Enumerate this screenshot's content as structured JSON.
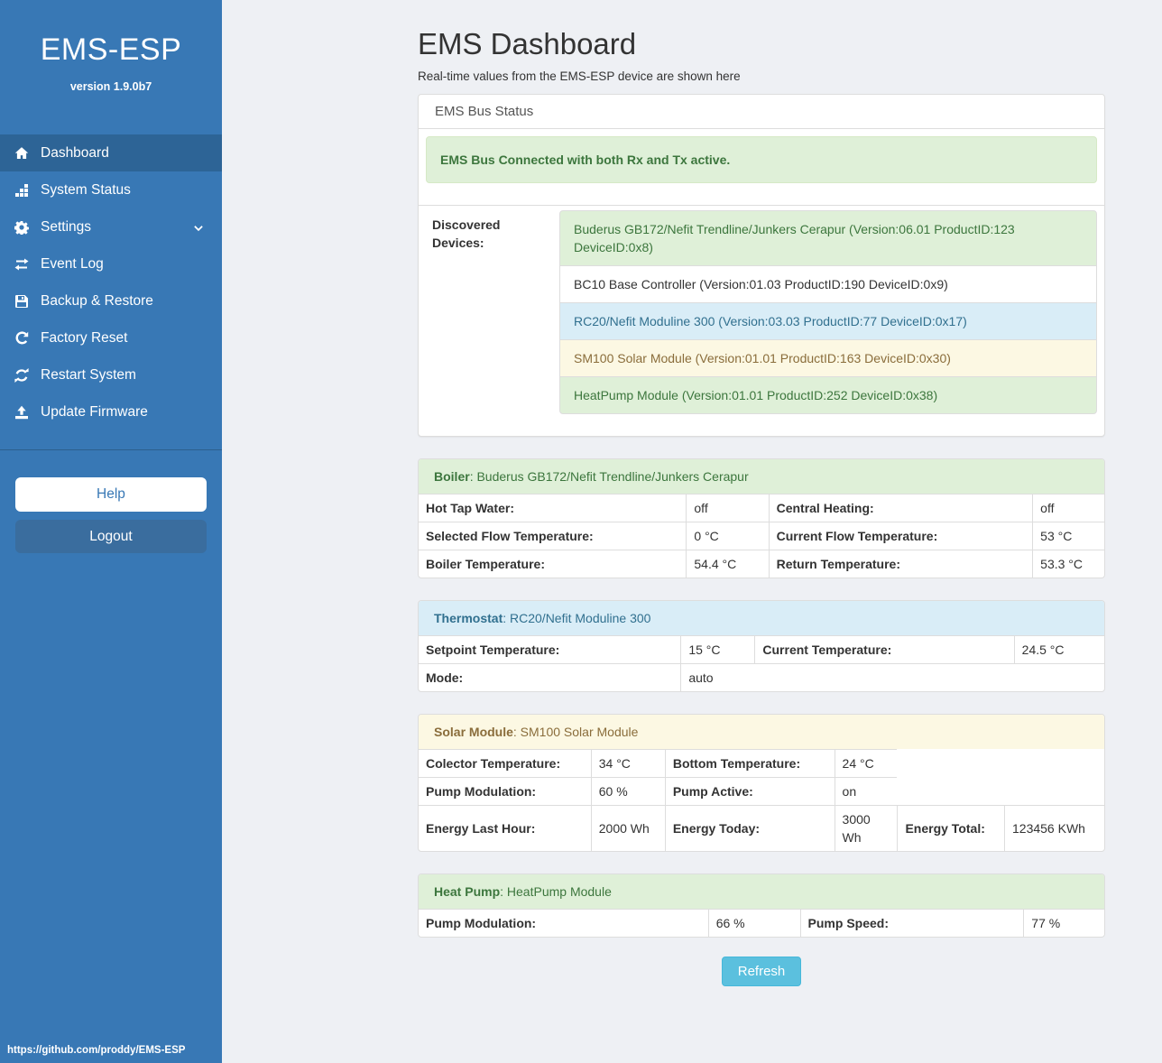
{
  "sidebar": {
    "title": "EMS-ESP",
    "version": "version 1.9.0b7",
    "items": [
      {
        "label": "Dashboard",
        "icon": "home-icon",
        "active": true
      },
      {
        "label": "System Status",
        "icon": "stats-icon",
        "active": false
      },
      {
        "label": "Settings",
        "icon": "gear-icon",
        "active": false,
        "chevron": true
      },
      {
        "label": "Event Log",
        "icon": "exchange-icon",
        "active": false
      },
      {
        "label": "Backup & Restore",
        "icon": "save-icon",
        "active": false
      },
      {
        "label": "Factory Reset",
        "icon": "rotate-icon",
        "active": false
      },
      {
        "label": "Restart System",
        "icon": "refresh-icon",
        "active": false
      },
      {
        "label": "Update Firmware",
        "icon": "upload-icon",
        "active": false
      }
    ],
    "help_label": "Help",
    "logout_label": "Logout",
    "footer_url": "https://github.com/proddy/EMS-ESP"
  },
  "header": {
    "title": "EMS Dashboard",
    "subtitle": "Real-time values from the EMS-ESP device are shown here"
  },
  "bus_panel": {
    "heading": "EMS Bus Status",
    "alert": "EMS Bus Connected with both Rx and Tx active.",
    "devices_label": "Discovered Devices:",
    "devices": [
      {
        "text": "Buderus GB172/Nefit Trendline/Junkers Cerapur (Version:06.01 ProductID:123 DeviceID:0x8)",
        "variant": "success"
      },
      {
        "text": "BC10 Base Controller (Version:01.03 ProductID:190 DeviceID:0x9)",
        "variant": "default"
      },
      {
        "text": "RC20/Nefit Moduline 300 (Version:03.03 ProductID:77 DeviceID:0x17)",
        "variant": "info"
      },
      {
        "text": "SM100 Solar Module (Version:01.01 ProductID:163 DeviceID:0x30)",
        "variant": "warning"
      },
      {
        "text": "HeatPump Module (Version:01.01 ProductID:252 DeviceID:0x38)",
        "variant": "success"
      }
    ]
  },
  "sections": [
    {
      "id": "boiler",
      "variant": "success",
      "title": "Boiler",
      "title_rest": ": Buderus GB172/Nefit Trendline/Junkers Cerapur",
      "col_widths": [
        "39%",
        "12%",
        "38.5%",
        "10.5%"
      ],
      "rows": [
        [
          {
            "t": "Hot Tap Water:",
            "b": true
          },
          {
            "t": "off"
          },
          {
            "t": "Central Heating:",
            "b": true
          },
          {
            "t": "off"
          }
        ],
        [
          {
            "t": "Selected Flow Temperature:",
            "b": true
          },
          {
            "t": "0 °C"
          },
          {
            "t": "Current Flow Temperature:",
            "b": true
          },
          {
            "t": "53 °C"
          }
        ],
        [
          {
            "t": "Boiler Temperature:",
            "b": true
          },
          {
            "t": "54.4 °C"
          },
          {
            "t": "Return Temperature:",
            "b": true
          },
          {
            "t": "53.3 °C"
          }
        ]
      ]
    },
    {
      "id": "thermostat",
      "variant": "info",
      "title": "Thermostat",
      "title_rest": ": RC20/Nefit Moduline 300",
      "col_widths": [
        "38.2%",
        "10.8%",
        "37.8%",
        "13.2%"
      ],
      "rows": [
        [
          {
            "t": "Setpoint Temperature:",
            "b": true
          },
          {
            "t": "15 °C"
          },
          {
            "t": "Current Temperature:",
            "b": true
          },
          {
            "t": "24.5 °C"
          }
        ],
        [
          {
            "t": "Mode:",
            "b": true
          },
          {
            "t": "auto",
            "span": 3
          }
        ]
      ]
    },
    {
      "id": "solar-module",
      "variant": "warning",
      "title": "Solar Module",
      "title_rest": ": SM100 Solar Module",
      "col_widths": [
        "25.1%",
        "10.8%",
        "24.7%",
        "9.2%",
        "15.6%",
        "14.6%"
      ],
      "rows": [
        [
          {
            "t": "Colector Temperature:",
            "b": true
          },
          {
            "t": "34 °C"
          },
          {
            "t": "Bottom Temperature:",
            "b": true
          },
          {
            "t": "24 °C"
          }
        ],
        [
          {
            "t": "Pump Modulation:",
            "b": true
          },
          {
            "t": "60 %"
          },
          {
            "t": "Pump Active:",
            "b": true
          },
          {
            "t": "on"
          }
        ],
        [
          {
            "t": "Energy Last Hour:",
            "b": true
          },
          {
            "t": "2000 Wh"
          },
          {
            "t": "Energy Today:",
            "b": true
          },
          {
            "t": "3000 Wh"
          },
          {
            "t": "Energy Total:",
            "b": true
          },
          {
            "t": "123456 KWh"
          }
        ]
      ]
    },
    {
      "id": "heat-pump",
      "variant": "success",
      "title": "Heat Pump",
      "title_rest": ": HeatPump Module",
      "col_widths": [
        "42.2%",
        "13.4%",
        "32.6%",
        "11.8%"
      ],
      "rows": [
        [
          {
            "t": "Pump Modulation:",
            "b": true
          },
          {
            "t": "66 %"
          },
          {
            "t": "Pump Speed:",
            "b": true
          },
          {
            "t": "77 %"
          }
        ]
      ]
    }
  ],
  "refresh": {
    "label": "Refresh"
  },
  "colors": {
    "sidebar": "#3878b5",
    "sidebar_active": "#2d6496",
    "logout_button": "#3a6d9e",
    "page_background": "#eef0f4",
    "panel_border": "#dddddd",
    "success_bg": "#dff0d8",
    "success_text": "#3c763d",
    "info_bg": "#d9edf7",
    "info_text": "#31708f",
    "warning_bg": "#fcf8e3",
    "warning_text": "#8a6d3b",
    "refresh_button": "#5bc0de"
  }
}
